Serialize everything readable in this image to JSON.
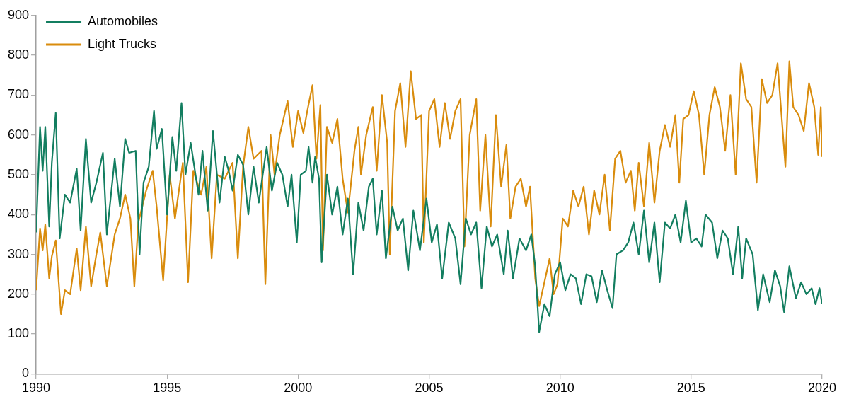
{
  "chart_data": {
    "type": "line",
    "xlim": [
      1990,
      2020
    ],
    "xticks": [
      1990,
      1995,
      2000,
      2005,
      2010,
      2015,
      2020
    ],
    "ylim": [
      0,
      900
    ],
    "yticks": [
      0,
      100,
      200,
      300,
      400,
      500,
      600,
      700,
      800,
      900
    ],
    "grid": false,
    "legend": "top left",
    "series": [
      {
        "name": "Automobiles",
        "color": "#137e60",
        "x": [
          1990.0,
          1990.15,
          1990.25,
          1990.35,
          1990.5,
          1990.6,
          1990.75,
          1990.9,
          1991.1,
          1991.3,
          1991.55,
          1991.7,
          1991.9,
          1992.1,
          1992.3,
          1992.55,
          1992.7,
          1993.0,
          1993.2,
          1993.4,
          1993.55,
          1993.8,
          1993.95,
          1994.1,
          1994.3,
          1994.5,
          1994.6,
          1994.8,
          1995.0,
          1995.2,
          1995.35,
          1995.55,
          1995.7,
          1995.9,
          1996.2,
          1996.35,
          1996.55,
          1996.75,
          1997.0,
          1997.2,
          1997.35,
          1997.5,
          1997.7,
          1997.9,
          1998.1,
          1998.3,
          1998.5,
          1998.8,
          1999.0,
          1999.2,
          1999.4,
          1999.6,
          1999.75,
          1999.95,
          2000.1,
          2000.3,
          2000.4,
          2000.55,
          2000.65,
          2000.8,
          2000.9,
          2001.1,
          2001.3,
          2001.5,
          2001.7,
          2001.9,
          2002.1,
          2002.3,
          2002.5,
          2002.7,
          2002.85,
          2003.0,
          2003.2,
          2003.35,
          2003.6,
          2003.8,
          2004.0,
          2004.2,
          2004.4,
          2004.65,
          2004.9,
          2005.1,
          2005.3,
          2005.5,
          2005.75,
          2006.0,
          2006.2,
          2006.4,
          2006.6,
          2006.8,
          2007.0,
          2007.2,
          2007.4,
          2007.6,
          2007.85,
          2008.0,
          2008.2,
          2008.45,
          2008.7,
          2008.9,
          2009.05,
          2009.2,
          2009.4,
          2009.6,
          2009.8,
          2010.0,
          2010.2,
          2010.4,
          2010.6,
          2010.8,
          2011.0,
          2011.2,
          2011.4,
          2011.6,
          2011.8,
          2012.0,
          2012.15,
          2012.4,
          2012.6,
          2012.8,
          2013.0,
          2013.2,
          2013.4,
          2013.6,
          2013.8,
          2014.0,
          2014.2,
          2014.4,
          2014.6,
          2014.8,
          2015.0,
          2015.2,
          2015.4,
          2015.55,
          2015.8,
          2016.0,
          2016.2,
          2016.4,
          2016.6,
          2016.8,
          2016.95,
          2017.1,
          2017.35,
          2017.55,
          2017.75,
          2018.0,
          2018.2,
          2018.4,
          2018.55,
          2018.75,
          2019.0,
          2019.2,
          2019.4,
          2019.6,
          2019.75,
          2019.9,
          2020.0
        ],
        "values": [
          355,
          620,
          510,
          620,
          370,
          530,
          655,
          340,
          450,
          430,
          515,
          360,
          590,
          430,
          480,
          555,
          350,
          540,
          420,
          590,
          555,
          560,
          300,
          480,
          520,
          660,
          565,
          615,
          400,
          595,
          510,
          680,
          500,
          580,
          450,
          560,
          410,
          610,
          430,
          545,
          510,
          460,
          550,
          525,
          400,
          520,
          430,
          570,
          460,
          530,
          500,
          420,
          500,
          330,
          500,
          510,
          570,
          480,
          545,
          490,
          280,
          500,
          400,
          470,
          350,
          440,
          250,
          430,
          360,
          470,
          490,
          350,
          460,
          290,
          420,
          360,
          390,
          260,
          410,
          310,
          440,
          330,
          375,
          240,
          380,
          340,
          225,
          390,
          350,
          380,
          215,
          370,
          320,
          350,
          250,
          360,
          240,
          340,
          310,
          350,
          270,
          105,
          175,
          145,
          250,
          280,
          210,
          250,
          240,
          175,
          250,
          245,
          180,
          260,
          210,
          165,
          300,
          310,
          330,
          380,
          300,
          410,
          280,
          380,
          230,
          380,
          365,
          400,
          330,
          435,
          330,
          340,
          320,
          400,
          380,
          290,
          360,
          340,
          250,
          370,
          240,
          340,
          300,
          160,
          250,
          180,
          260,
          220,
          155,
          270,
          190,
          230,
          200,
          215,
          175,
          215,
          175
        ]
      },
      {
        "name": "Light Trucks",
        "color": "#d98c0d",
        "x": [
          1990.0,
          1990.15,
          1990.25,
          1990.35,
          1990.5,
          1990.6,
          1990.75,
          1990.95,
          1991.1,
          1991.3,
          1991.55,
          1991.7,
          1991.9,
          1992.1,
          1992.3,
          1992.45,
          1992.7,
          1993.0,
          1993.2,
          1993.4,
          1993.6,
          1993.75,
          1993.9,
          1994.2,
          1994.45,
          1994.6,
          1994.85,
          1995.1,
          1995.3,
          1995.6,
          1995.8,
          1996.0,
          1996.3,
          1996.5,
          1996.7,
          1996.9,
          1997.2,
          1997.5,
          1997.7,
          1997.9,
          1998.1,
          1998.3,
          1998.6,
          1998.75,
          1998.95,
          1999.1,
          1999.3,
          1999.6,
          1999.8,
          2000.0,
          2000.2,
          2000.35,
          2000.55,
          2000.7,
          2000.85,
          2000.95,
          2001.1,
          2001.3,
          2001.5,
          2001.7,
          2001.9,
          2002.15,
          2002.3,
          2002.4,
          2002.6,
          2002.85,
          2003.0,
          2003.2,
          2003.4,
          2003.5,
          2003.7,
          2003.9,
          2004.1,
          2004.3,
          2004.5,
          2004.7,
          2004.8,
          2005.0,
          2005.2,
          2005.4,
          2005.6,
          2005.8,
          2006.0,
          2006.2,
          2006.35,
          2006.55,
          2006.8,
          2006.95,
          2007.15,
          2007.35,
          2007.55,
          2007.75,
          2007.95,
          2008.1,
          2008.3,
          2008.5,
          2008.7,
          2008.85,
          2009.05,
          2009.2,
          2009.4,
          2009.6,
          2009.75,
          2009.9,
          2010.1,
          2010.3,
          2010.5,
          2010.7,
          2010.9,
          2011.1,
          2011.3,
          2011.5,
          2011.7,
          2011.9,
          2012.1,
          2012.3,
          2012.5,
          2012.7,
          2012.85,
          2013.0,
          2013.2,
          2013.4,
          2013.6,
          2013.8,
          2014.0,
          2014.2,
          2014.4,
          2014.55,
          2014.7,
          2014.9,
          2015.1,
          2015.3,
          2015.5,
          2015.7,
          2015.9,
          2016.1,
          2016.3,
          2016.5,
          2016.7,
          2016.9,
          2017.1,
          2017.3,
          2017.5,
          2017.7,
          2017.9,
          2018.1,
          2018.3,
          2018.45,
          2018.6,
          2018.75,
          2018.9,
          2019.1,
          2019.3,
          2019.5,
          2019.7,
          2019.85,
          2019.95,
          2020.0
        ],
        "values": [
          210,
          365,
          310,
          375,
          240,
          295,
          335,
          150,
          210,
          200,
          315,
          210,
          370,
          220,
          300,
          355,
          220,
          350,
          390,
          450,
          390,
          220,
          380,
          460,
          510,
          420,
          235,
          500,
          390,
          530,
          230,
          510,
          450,
          520,
          290,
          500,
          490,
          530,
          290,
          520,
          620,
          540,
          560,
          225,
          600,
          500,
          600,
          685,
          570,
          660,
          605,
          660,
          725,
          540,
          675,
          310,
          620,
          580,
          640,
          490,
          405,
          560,
          620,
          500,
          600,
          670,
          510,
          700,
          580,
          300,
          660,
          730,
          570,
          760,
          640,
          650,
          330,
          660,
          690,
          570,
          680,
          590,
          660,
          690,
          320,
          600,
          690,
          410,
          600,
          370,
          650,
          470,
          575,
          390,
          470,
          490,
          420,
          470,
          240,
          170,
          230,
          290,
          200,
          225,
          390,
          370,
          460,
          420,
          470,
          350,
          460,
          400,
          500,
          360,
          540,
          560,
          480,
          510,
          410,
          530,
          420,
          580,
          430,
          560,
          625,
          570,
          650,
          480,
          640,
          650,
          710,
          650,
          500,
          650,
          720,
          670,
          560,
          700,
          500,
          780,
          690,
          670,
          480,
          740,
          680,
          700,
          780,
          650,
          520,
          785,
          670,
          650,
          610,
          730,
          670,
          550,
          670,
          545
        ]
      }
    ]
  }
}
